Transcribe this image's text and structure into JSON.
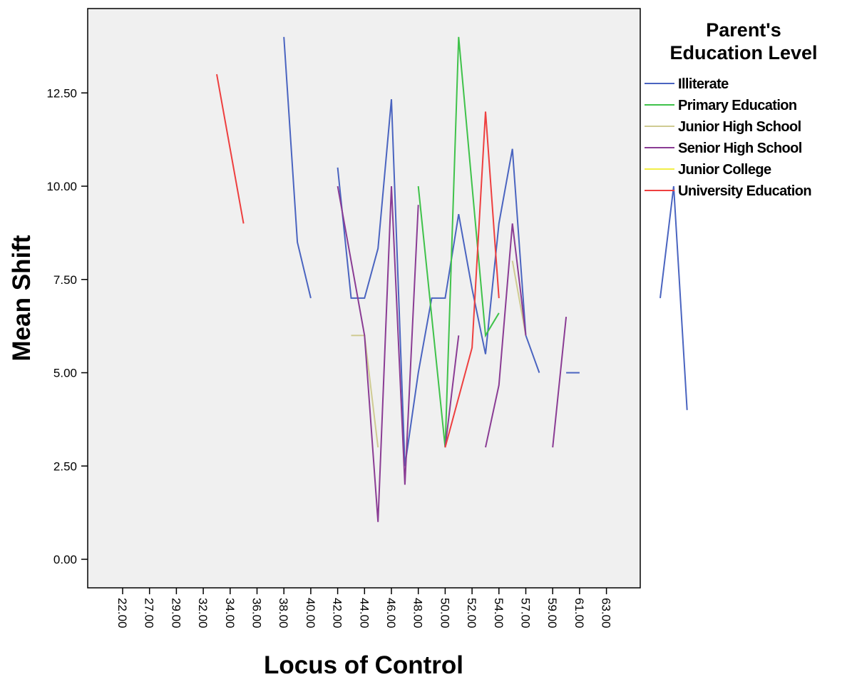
{
  "chart_data": {
    "type": "line",
    "title": "",
    "xlabel": "Locus of Control",
    "ylabel": "Mean Shift",
    "x_categories": [
      "22.00",
      "27.00",
      "29.00",
      "32.00",
      "34.00",
      "36.00",
      "38.00",
      "40.00",
      "42.00",
      "44.00",
      "46.00",
      "48.00",
      "50.00",
      "52.00",
      "54.00",
      "57.00",
      "59.00",
      "61.00",
      "63.00"
    ],
    "y_ticks": [
      "0.00",
      "2.50",
      "5.00",
      "7.50",
      "10.00",
      "12.50"
    ],
    "ylim": [
      -0.3,
      14.0
    ],
    "grid": false,
    "plot_background": "#f0f0f0",
    "legend": {
      "title_lines": [
        "Parent's",
        "Education Level"
      ],
      "position": "right",
      "entries": [
        {
          "label": "Illiterate",
          "color": "#4a64c0"
        },
        {
          "label": "Primary Education",
          "color": "#3fc24a"
        },
        {
          "label": "Junior High School",
          "color": "#cfcb92"
        },
        {
          "label": "Senior High School",
          "color": "#8a3c94"
        },
        {
          "label": "Junior College",
          "color": "#f2ee48"
        },
        {
          "label": "University Education",
          "color": "#ee3f3f"
        }
      ]
    },
    "series": [
      {
        "name": "Illiterate",
        "color": "#4a64c0",
        "segments": [
          [
            [
              6.0,
              14.0
            ],
            [
              6.5,
              8.5
            ],
            [
              7.0,
              7.0
            ]
          ],
          [
            [
              8.0,
              10.5
            ],
            [
              8.5,
              7.0
            ],
            [
              9.0,
              7.0
            ],
            [
              9.5,
              8.33
            ],
            [
              10.0,
              12.33
            ],
            [
              10.5,
              2.5
            ],
            [
              11.0,
              5.0
            ],
            [
              11.5,
              7.0
            ],
            [
              12.0,
              7.0
            ],
            [
              12.5,
              9.25
            ],
            [
              13.0,
              7.25
            ],
            [
              13.5,
              5.5
            ],
            [
              14.0,
              9.0
            ],
            [
              14.5,
              11.0
            ],
            [
              15.0,
              6.0
            ],
            [
              15.5,
              5.0
            ]
          ],
          [
            [
              16.5,
              5.0
            ],
            [
              17.0,
              5.0
            ]
          ],
          [
            [
              20.0,
              7.0
            ],
            [
              20.5,
              10.0
            ],
            [
              21.0,
              4.0
            ]
          ]
        ]
      },
      {
        "name": "Primary Education",
        "color": "#3fc24a",
        "segments": [
          [
            [
              11.0,
              10.0
            ],
            [
              12.0,
              3.0
            ],
            [
              12.5,
              14.0
            ],
            [
              13.5,
              6.0
            ],
            [
              14.0,
              6.6
            ]
          ]
        ]
      },
      {
        "name": "Junior High School",
        "color": "#cfcb92",
        "segments": [
          [
            [
              8.5,
              6.0
            ],
            [
              9.0,
              6.0
            ],
            [
              9.5,
              3.0
            ]
          ],
          [
            [
              14.5,
              8.0
            ],
            [
              15.0,
              6.0
            ]
          ]
        ]
      },
      {
        "name": "Senior High School",
        "color": "#8a3c94",
        "segments": [
          [
            [
              8.0,
              10.0
            ],
            [
              9.0,
              6.0
            ],
            [
              9.5,
              1.0
            ],
            [
              10.0,
              10.0
            ],
            [
              10.5,
              2.0
            ],
            [
              11.0,
              9.5
            ]
          ],
          [
            [
              12.0,
              3.0
            ],
            [
              12.5,
              6.0
            ]
          ],
          [
            [
              13.5,
              3.0
            ],
            [
              14.0,
              4.67
            ],
            [
              14.5,
              9.0
            ],
            [
              15.0,
              6.0
            ]
          ],
          [
            [
              16.0,
              3.0
            ],
            [
              16.5,
              6.5
            ]
          ]
        ]
      },
      {
        "name": "Junior College",
        "color": "#f2ee48",
        "segments": []
      },
      {
        "name": "University Education",
        "color": "#ee3f3f",
        "segments": [
          [
            [
              3.5,
              13.0
            ],
            [
              4.5,
              9.0
            ]
          ],
          [
            [
              12.0,
              3.0
            ],
            [
              13.0,
              5.67
            ],
            [
              13.5,
              12.0
            ],
            [
              14.0,
              7.0
            ]
          ]
        ]
      }
    ]
  }
}
